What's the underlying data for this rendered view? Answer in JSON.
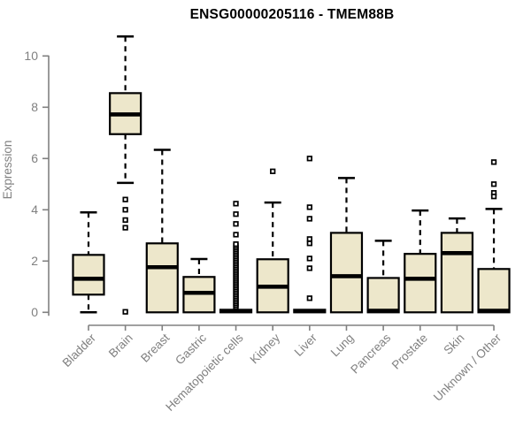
{
  "title": "ENSG00000205116 - TMEM88B",
  "chart_data": {
    "type": "boxplot",
    "title": "ENSG00000205116 - TMEM88B",
    "xlabel": "",
    "ylabel": "Expression",
    "ylim": [
      0,
      10.8
    ],
    "yticks": [
      0,
      2,
      4,
      6,
      8,
      10
    ],
    "grid": false,
    "legend": "none",
    "colors": {
      "box_fill": "#ede7cb",
      "box_border": "#000000",
      "median": "#000000",
      "whisker": "#000000",
      "outlier": "#000000",
      "axis": "#808080",
      "tick_label": "#808080",
      "title": "#000000",
      "background": "#ffffff"
    },
    "categories": [
      "Bladder",
      "Brain",
      "Breast",
      "Gastric",
      "Hematopoietic cells",
      "Kidney",
      "Liver",
      "Lung",
      "Pancreas",
      "Prostate",
      "Skin",
      "Unknown / Other"
    ],
    "boxes": [
      {
        "label": "Bladder",
        "whisker_low": 0.0,
        "q1": 0.69,
        "median": 1.31,
        "q3": 2.24,
        "whisker_high": 3.9,
        "outliers": []
      },
      {
        "label": "Brain",
        "whisker_low": 5.05,
        "q1": 6.95,
        "median": 7.72,
        "q3": 8.55,
        "whisker_high": 10.76,
        "outliers": [
          4.4,
          4.0,
          3.6,
          3.3,
          0.02
        ]
      },
      {
        "label": "Breast",
        "whisker_low": 0.0,
        "q1": 0.0,
        "median": 1.76,
        "q3": 2.69,
        "whisker_high": 6.34,
        "outliers": []
      },
      {
        "label": "Gastric",
        "whisker_low": 0.0,
        "q1": 0.0,
        "median": 0.76,
        "q3": 1.38,
        "whisker_high": 2.08,
        "outliers": []
      },
      {
        "label": "Hematopoietic cells",
        "whisker_low": 0.0,
        "q1": 0.0,
        "median": 0.05,
        "q3": 0.1,
        "whisker_high": 0.1,
        "outliers": [
          0.21,
          0.28,
          0.35,
          0.42,
          0.49,
          0.56,
          0.63,
          0.7,
          0.77,
          0.84,
          0.91,
          0.98,
          1.05,
          1.12,
          1.19,
          1.26,
          1.33,
          1.4,
          1.47,
          1.54,
          1.61,
          1.68,
          1.75,
          1.82,
          1.89,
          1.96,
          2.03,
          2.1,
          2.17,
          2.24,
          2.31,
          2.38,
          2.45,
          2.52,
          2.59,
          2.66,
          3.03,
          3.45,
          3.83,
          4.24
        ]
      },
      {
        "label": "Kidney",
        "whisker_low": 0.0,
        "q1": 0.0,
        "median": 1.0,
        "q3": 2.07,
        "whisker_high": 4.28,
        "outliers": [
          5.5
        ]
      },
      {
        "label": "Liver",
        "whisker_low": 0.0,
        "q1": 0.0,
        "median": 0.05,
        "q3": 0.1,
        "whisker_high": 0.1,
        "outliers": [
          6.0,
          4.1,
          3.65,
          2.86,
          2.69,
          2.1,
          1.72,
          0.55
        ]
      },
      {
        "label": "Lung",
        "whisker_low": 0.0,
        "q1": 0.0,
        "median": 1.41,
        "q3": 3.1,
        "whisker_high": 5.24,
        "outliers": []
      },
      {
        "label": "Pancreas",
        "whisker_low": 0.0,
        "q1": 0.0,
        "median": 0.06,
        "q3": 1.34,
        "whisker_high": 2.79,
        "outliers": []
      },
      {
        "label": "Prostate",
        "whisker_low": 0.0,
        "q1": 0.0,
        "median": 1.31,
        "q3": 2.28,
        "whisker_high": 3.97,
        "outliers": []
      },
      {
        "label": "Skin",
        "whisker_low": 0.0,
        "q1": 0.0,
        "median": 2.31,
        "q3": 3.1,
        "whisker_high": 3.66,
        "outliers": []
      },
      {
        "label": "Unknown / Other",
        "whisker_low": 0.0,
        "q1": 0.0,
        "median": 0.06,
        "q3": 1.69,
        "whisker_high": 4.03,
        "outliers": [
          5.86,
          5.0,
          4.66,
          4.52
        ]
      }
    ]
  }
}
